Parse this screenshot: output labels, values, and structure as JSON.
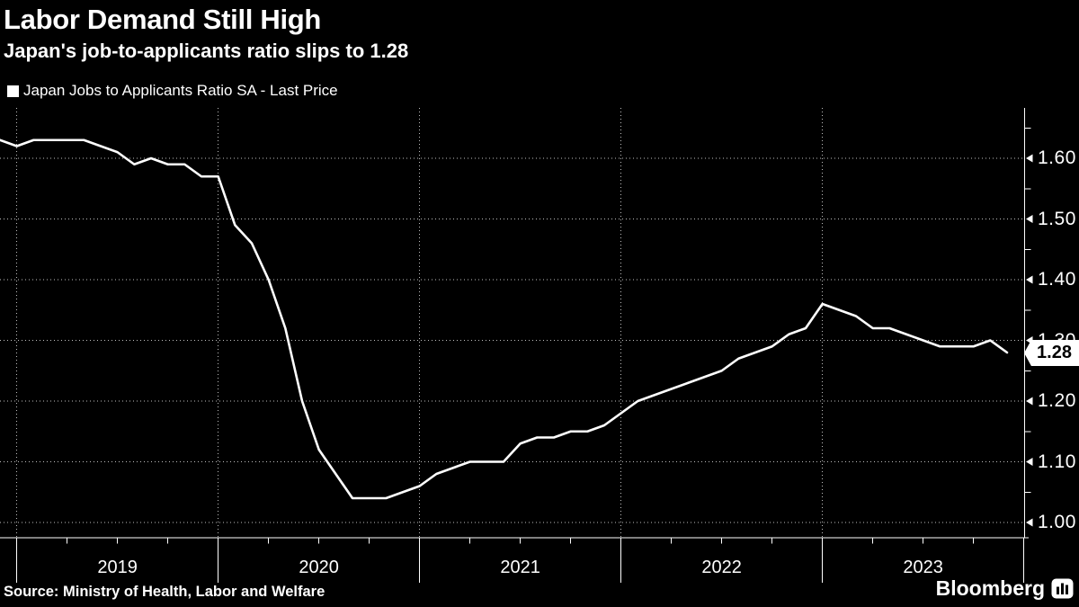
{
  "header": {
    "title": "Labor Demand Still High",
    "subtitle": "Japan's job-to-applicants ratio slips to 1.28"
  },
  "legend": {
    "swatch_color": "#ffffff",
    "label": "Japan Jobs to Applicants Ratio SA - Last Price"
  },
  "last_price": {
    "value_label": "1.28"
  },
  "footer": {
    "source": "Source: Ministry of Health, Labor and Welfare",
    "brand": "Bloomberg"
  },
  "colors": {
    "background": "#000000",
    "foreground": "#ffffff",
    "line": "#ffffff",
    "grid": "rgba(255,255,255,0.75)",
    "badge_bg": "#ffffff",
    "badge_text": "#000000"
  },
  "chart_data": {
    "type": "line",
    "title": "Labor Demand Still High",
    "subtitle": "Japan's job-to-applicants ratio slips to 1.28",
    "series_name": "Japan Jobs to Applicants Ratio SA - Last Price",
    "x_months": [
      "2018-11",
      "2018-12",
      "2019-01",
      "2019-02",
      "2019-03",
      "2019-04",
      "2019-05",
      "2019-06",
      "2019-07",
      "2019-08",
      "2019-09",
      "2019-10",
      "2019-11",
      "2019-12",
      "2020-01",
      "2020-02",
      "2020-03",
      "2020-04",
      "2020-05",
      "2020-06",
      "2020-07",
      "2020-08",
      "2020-09",
      "2020-10",
      "2020-11",
      "2020-12",
      "2021-01",
      "2021-02",
      "2021-03",
      "2021-04",
      "2021-05",
      "2021-06",
      "2021-07",
      "2021-08",
      "2021-09",
      "2021-10",
      "2021-11",
      "2021-12",
      "2022-01",
      "2022-02",
      "2022-03",
      "2022-04",
      "2022-05",
      "2022-06",
      "2022-07",
      "2022-08",
      "2022-09",
      "2022-10",
      "2022-11",
      "2022-12",
      "2023-01",
      "2023-02",
      "2023-03",
      "2023-04",
      "2023-05",
      "2023-06",
      "2023-07",
      "2023-08",
      "2023-09",
      "2023-10",
      "2023-11"
    ],
    "values": [
      1.63,
      1.62,
      1.63,
      1.63,
      1.63,
      1.63,
      1.62,
      1.61,
      1.59,
      1.6,
      1.59,
      1.59,
      1.57,
      1.57,
      1.49,
      1.46,
      1.4,
      1.32,
      1.2,
      1.12,
      1.08,
      1.04,
      1.04,
      1.04,
      1.05,
      1.06,
      1.08,
      1.09,
      1.1,
      1.1,
      1.1,
      1.13,
      1.14,
      1.14,
      1.15,
      1.15,
      1.16,
      1.18,
      1.2,
      1.21,
      1.22,
      1.23,
      1.24,
      1.25,
      1.27,
      1.28,
      1.29,
      1.31,
      1.32,
      1.36,
      1.35,
      1.34,
      1.32,
      1.32,
      1.31,
      1.3,
      1.29,
      1.29,
      1.29,
      1.3,
      1.28
    ],
    "last_value": 1.28,
    "x_tick_labels": [
      "2019",
      "2020",
      "2021",
      "2022",
      "2023"
    ],
    "y_ticks": [
      1.0,
      1.1,
      1.2,
      1.3,
      1.4,
      1.5,
      1.6
    ],
    "y_tick_labels": [
      "1.00",
      "1.10",
      "1.20",
      "1.30",
      "1.40",
      "1.50",
      "1.60"
    ],
    "ylim": [
      1.0,
      1.685
    ],
    "grid": true,
    "legend_position": "top-left",
    "y_axis_side": "right"
  }
}
